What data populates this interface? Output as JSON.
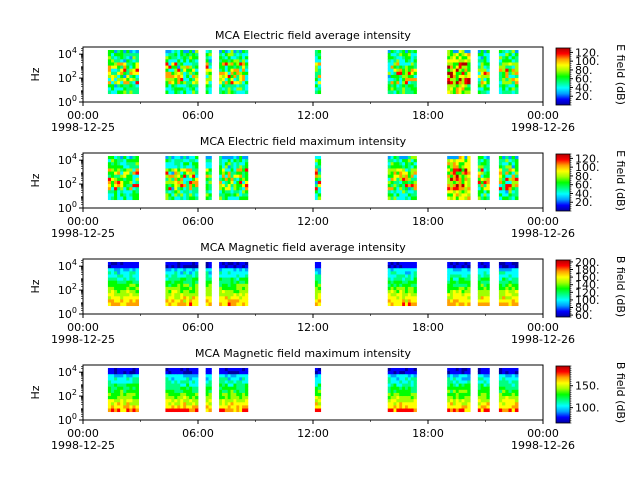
{
  "chart_data": [
    {
      "type": "heatmap",
      "title": "MCA  Electric field average intensity",
      "ylabel": "Hz",
      "yscale": "log",
      "y_ticks": [
        {
          "base": "10",
          "exp": "0"
        },
        {
          "base": "10",
          "exp": "2"
        },
        {
          "base": "10",
          "exp": "4"
        }
      ],
      "x_ticks": [
        {
          "time": "00:00",
          "date": "1998-12-25"
        },
        {
          "time": "06:00",
          "date": ""
        },
        {
          "time": "12:00",
          "date": ""
        },
        {
          "time": "18:00",
          "date": ""
        },
        {
          "time": "00:00",
          "date": "1998-12-26"
        }
      ],
      "colorbar": {
        "label": "E field (dB)",
        "ticks": [
          "20.",
          "40.",
          "60.",
          "80.",
          "100.",
          "120."
        ],
        "range": [
          0,
          130
        ]
      },
      "data_blocks_hours": [
        [
          1.3,
          2.9
        ],
        [
          4.3,
          6.0
        ],
        [
          6.4,
          6.7
        ],
        [
          7.1,
          8.6
        ],
        [
          12.1,
          12.4
        ],
        [
          15.9,
          17.4
        ],
        [
          19.0,
          20.2
        ],
        [
          20.6,
          21.2
        ],
        [
          21.7,
          22.7
        ]
      ]
    },
    {
      "type": "heatmap",
      "title": "MCA  Electric field maximum intensity",
      "ylabel": "Hz",
      "yscale": "log",
      "y_ticks": [
        {
          "base": "10",
          "exp": "0"
        },
        {
          "base": "10",
          "exp": "2"
        },
        {
          "base": "10",
          "exp": "4"
        }
      ],
      "x_ticks": [
        {
          "time": "00:00",
          "date": "1998-12-25"
        },
        {
          "time": "06:00",
          "date": ""
        },
        {
          "time": "12:00",
          "date": ""
        },
        {
          "time": "18:00",
          "date": ""
        },
        {
          "time": "00:00",
          "date": "1998-12-26"
        }
      ],
      "colorbar": {
        "label": "E field (dB)",
        "ticks": [
          "20.",
          "40.",
          "60.",
          "80.",
          "100.",
          "120."
        ],
        "range": [
          0,
          130
        ]
      },
      "data_blocks_hours": [
        [
          1.3,
          2.9
        ],
        [
          4.3,
          6.0
        ],
        [
          6.4,
          6.7
        ],
        [
          7.1,
          8.6
        ],
        [
          12.1,
          12.4
        ],
        [
          15.9,
          17.4
        ],
        [
          19.0,
          20.2
        ],
        [
          20.6,
          21.2
        ],
        [
          21.7,
          22.7
        ]
      ]
    },
    {
      "type": "heatmap",
      "title": "MCA  Magnetic field average intensity",
      "ylabel": "Hz",
      "yscale": "log",
      "y_ticks": [
        {
          "base": "10",
          "exp": "0"
        },
        {
          "base": "10",
          "exp": "2"
        },
        {
          "base": "10",
          "exp": "4"
        }
      ],
      "x_ticks": [
        {
          "time": "00:00",
          "date": "1998-12-25"
        },
        {
          "time": "06:00",
          "date": ""
        },
        {
          "time": "12:00",
          "date": ""
        },
        {
          "time": "18:00",
          "date": ""
        },
        {
          "time": "00:00",
          "date": "1998-12-26"
        }
      ],
      "colorbar": {
        "label": "B field (dB)",
        "ticks": [
          "60.",
          "80.",
          "100.",
          "120.",
          "140.",
          "160.",
          "180.",
          "200."
        ],
        "range": [
          55,
          205
        ]
      },
      "data_blocks_hours": [
        [
          1.3,
          2.9
        ],
        [
          4.3,
          6.0
        ],
        [
          6.4,
          6.7
        ],
        [
          7.1,
          8.6
        ],
        [
          12.1,
          12.4
        ],
        [
          15.9,
          17.4
        ],
        [
          19.0,
          20.2
        ],
        [
          20.6,
          21.2
        ],
        [
          21.7,
          22.7
        ]
      ]
    },
    {
      "type": "heatmap",
      "title": "MCA  Magnetic field maximum intensity",
      "ylabel": "Hz",
      "yscale": "log",
      "y_ticks": [
        {
          "base": "10",
          "exp": "0"
        },
        {
          "base": "10",
          "exp": "2"
        },
        {
          "base": "10",
          "exp": "4"
        }
      ],
      "x_ticks": [
        {
          "time": "00:00",
          "date": "1998-12-25"
        },
        {
          "time": "06:00",
          "date": ""
        },
        {
          "time": "12:00",
          "date": ""
        },
        {
          "time": "18:00",
          "date": ""
        },
        {
          "time": "00:00",
          "date": "1998-12-26"
        }
      ],
      "colorbar": {
        "label": "B field (dB)",
        "ticks": [
          "100.",
          "150."
        ],
        "range": [
          65,
          195
        ]
      },
      "data_blocks_hours": [
        [
          1.3,
          2.9
        ],
        [
          4.3,
          6.0
        ],
        [
          6.4,
          6.7
        ],
        [
          7.1,
          8.6
        ],
        [
          12.1,
          12.4
        ],
        [
          15.9,
          17.4
        ],
        [
          19.0,
          20.2
        ],
        [
          20.6,
          21.2
        ],
        [
          21.7,
          22.7
        ]
      ]
    }
  ],
  "colormap": [
    "#0000a0",
    "#0000ff",
    "#00a0ff",
    "#00ffff",
    "#00ff80",
    "#00ff00",
    "#a0ff00",
    "#ffff00",
    "#ffa000",
    "#ff0000",
    "#b00000"
  ]
}
